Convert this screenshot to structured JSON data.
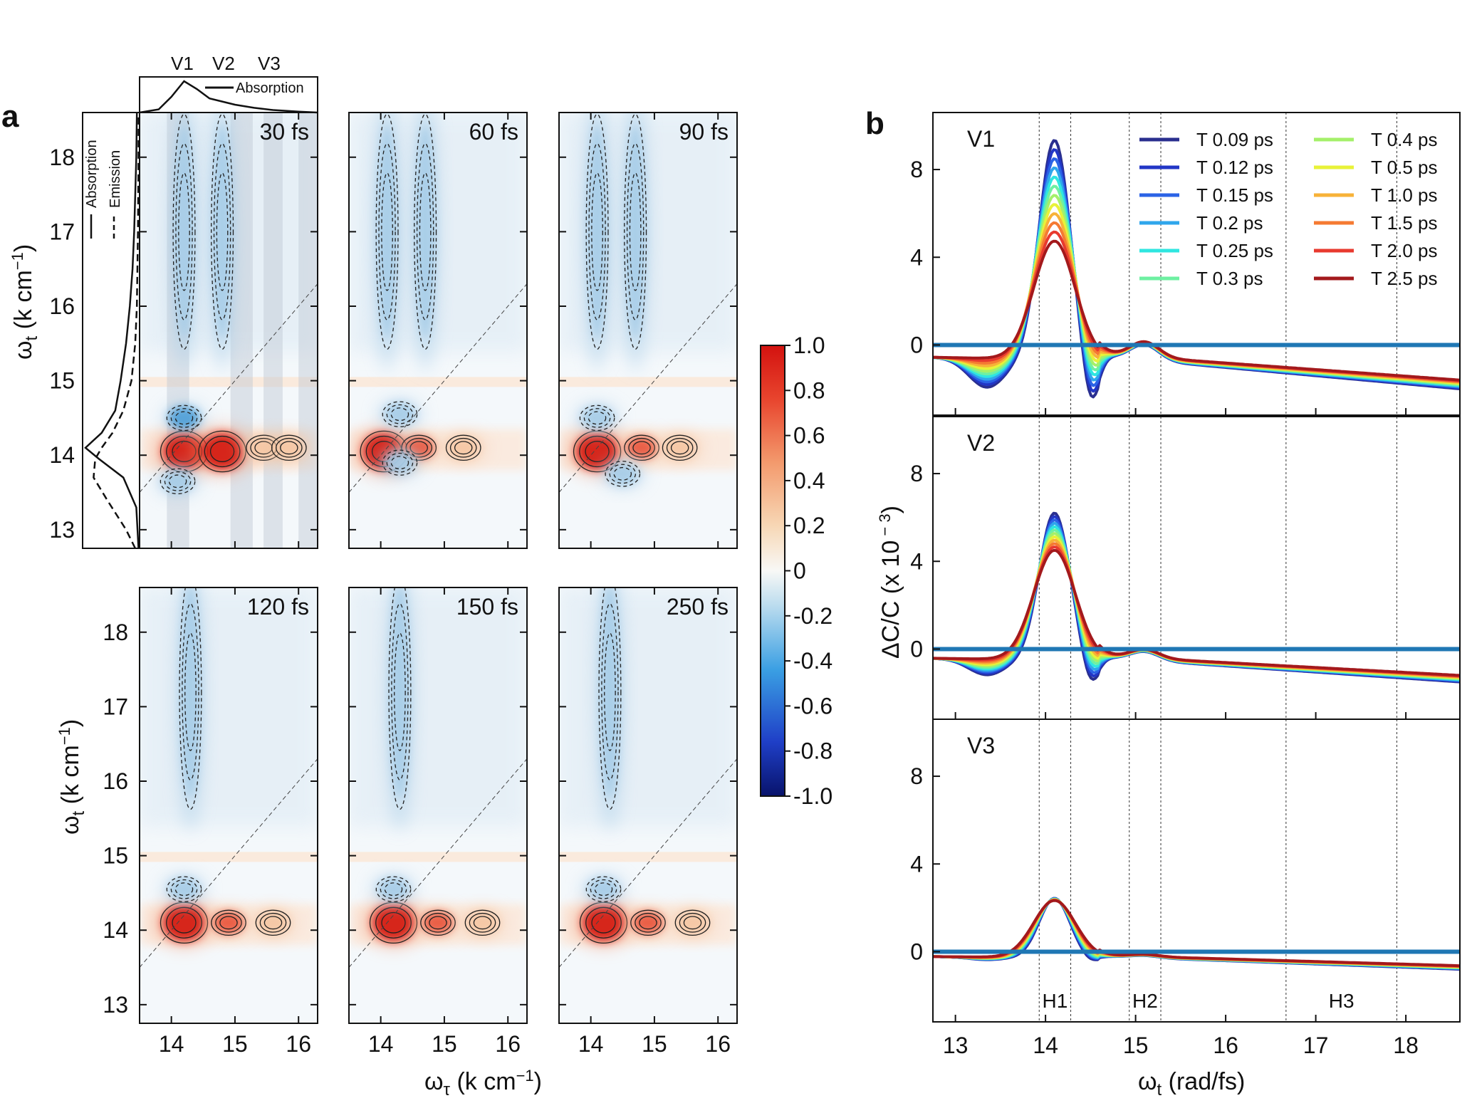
{
  "panel_a": {
    "letter": "a",
    "ylabel_main": "ω",
    "ylabel_sub": "t",
    "ylabel_unit": " (k cm",
    "ylabel_exp": "−1",
    "ylabel_close": ")",
    "xlabel_main": "ω",
    "xlabel_sub": "τ",
    "xlabel_unit": " (k cm",
    "xlabel_exp": "−1",
    "xlabel_close": ")",
    "xticks": [
      "14",
      "15",
      "16"
    ],
    "yticks": [
      "13",
      "14",
      "15",
      "16",
      "17",
      "18"
    ],
    "times": [
      "30 fs",
      "60 fs",
      "90 fs",
      "120 fs",
      "150 fs",
      "250 fs"
    ],
    "top_inset": {
      "labels": [
        "V1",
        "V2",
        "V3"
      ],
      "legend": "Absorption"
    },
    "side_inset": {
      "legend": [
        "Absorption",
        "Emission"
      ]
    },
    "colorbar": {
      "ticks": [
        "1.0",
        "0.8",
        "0.6",
        "0.4",
        "0.2",
        "0",
        "-0.2",
        "-0.4",
        "-0.6",
        "-0.8",
        "-1.0"
      ]
    }
  },
  "panel_b": {
    "letter": "b",
    "ylabel": "ΔC/C (x 10",
    "ylabel_exp": " − 3",
    "ylabel_close": ")",
    "xlabel_main": "ω",
    "xlabel_sub": "t",
    "xlabel_unit": " (rad/fs)",
    "subpanels": [
      "V1",
      "V2",
      "V3"
    ],
    "regions": [
      "H1",
      "H2",
      "H3"
    ],
    "xticks": [
      "13",
      "14",
      "15",
      "16",
      "17",
      "18"
    ],
    "yticks": [
      "0",
      "4",
      "8"
    ]
  },
  "chart_data": [
    {
      "type": "heatmap",
      "panel": "a",
      "x_range": [
        13.5,
        16.3
      ],
      "y_range": [
        12.75,
        18.6
      ],
      "color_range": [
        -1.0,
        1.0
      ],
      "colormap": "blue-white-red",
      "diagonal_line": true,
      "maps": [
        {
          "time": "30 fs",
          "peaks": [
            [
              14.2,
              14.05,
              1.0
            ],
            [
              14.8,
              14.05,
              0.85
            ],
            [
              15.45,
              14.1,
              0.3
            ],
            [
              15.85,
              14.1,
              0.3
            ],
            [
              14.2,
              14.5,
              -0.45
            ],
            [
              14.1,
              13.65,
              -0.3
            ],
            [
              14.2,
              17.0,
              -0.35
            ],
            [
              14.8,
              17.0,
              -0.3
            ]
          ]
        },
        {
          "time": "60 fs",
          "peaks": [
            [
              14.05,
              14.05,
              0.9
            ],
            [
              14.6,
              14.1,
              0.6
            ],
            [
              15.3,
              14.1,
              0.3
            ],
            [
              14.3,
              13.9,
              -0.2
            ],
            [
              14.3,
              14.55,
              -0.4
            ],
            [
              14.1,
              17.0,
              -0.35
            ],
            [
              14.7,
              17.0,
              -0.3
            ]
          ]
        },
        {
          "time": "90 fs",
          "peaks": [
            [
              14.1,
              14.05,
              0.95
            ],
            [
              14.8,
              14.1,
              0.6
            ],
            [
              15.4,
              14.1,
              0.25
            ],
            [
              14.1,
              14.5,
              -0.4
            ],
            [
              14.5,
              13.75,
              -0.3
            ],
            [
              14.1,
              17.0,
              -0.3
            ],
            [
              14.7,
              17.0,
              -0.25
            ]
          ]
        },
        {
          "time": "120 fs",
          "peaks": [
            [
              14.2,
              14.1,
              1.0
            ],
            [
              14.9,
              14.1,
              0.6
            ],
            [
              15.6,
              14.1,
              0.3
            ],
            [
              14.2,
              14.55,
              -0.35
            ],
            [
              14.3,
              17.2,
              -0.3
            ]
          ]
        },
        {
          "time": "150 fs",
          "peaks": [
            [
              14.2,
              14.1,
              1.0
            ],
            [
              14.9,
              14.1,
              0.6
            ],
            [
              15.6,
              14.1,
              0.3
            ],
            [
              14.2,
              14.55,
              -0.35
            ],
            [
              14.3,
              17.2,
              -0.3
            ]
          ]
        },
        {
          "time": "250 fs",
          "peaks": [
            [
              14.2,
              14.1,
              1.0
            ],
            [
              14.9,
              14.1,
              0.6
            ],
            [
              15.6,
              14.1,
              0.3
            ],
            [
              14.2,
              14.55,
              -0.35
            ],
            [
              14.3,
              17.2,
              -0.3
            ]
          ]
        }
      ],
      "top_inset_absorption": {
        "x": [
          13.5,
          13.8,
          14.0,
          14.2,
          14.4,
          14.6,
          14.8,
          15.0,
          15.3,
          15.6,
          16.0,
          16.3
        ],
        "y": [
          0.0,
          0.1,
          0.5,
          1.0,
          0.75,
          0.45,
          0.35,
          0.25,
          0.15,
          0.08,
          0.03,
          0.0
        ]
      },
      "side_inset_absorption": {
        "y": [
          12.75,
          13.3,
          13.7,
          13.95,
          14.1,
          14.3,
          14.6,
          15.0,
          15.5,
          16.0,
          16.5,
          17.0,
          18.0,
          18.6
        ],
        "x": [
          0.02,
          0.06,
          0.3,
          0.75,
          1.0,
          0.7,
          0.45,
          0.35,
          0.25,
          0.18,
          0.13,
          0.1,
          0.06,
          0.05
        ]
      },
      "side_inset_emission": {
        "y": [
          12.75,
          13.0,
          13.4,
          13.7,
          13.95,
          14.1,
          14.3,
          14.6,
          15.0,
          15.5,
          16.0,
          17.0,
          18.0,
          18.6
        ],
        "x": [
          0.08,
          0.25,
          0.6,
          0.85,
          0.82,
          0.7,
          0.5,
          0.3,
          0.15,
          0.08,
          0.05,
          0.03,
          0.02,
          0.02
        ]
      }
    },
    {
      "type": "line",
      "panel": "b",
      "x_range": [
        12.75,
        18.6
      ],
      "y_range": [
        -3.2,
        10.6
      ],
      "xlabel": "ωt (rad/fs)",
      "ylabel": "ΔC/C (x 10 − 3)",
      "vlines": [
        13.93,
        14.28,
        14.93,
        15.28,
        16.67,
        17.9
      ],
      "legend_position": "top-right",
      "series": [
        {
          "name": "T 0.09 ps",
          "color": "#2a2f8f"
        },
        {
          "name": "T 0.12 ps",
          "color": "#2236c6"
        },
        {
          "name": "T 0.15 ps",
          "color": "#2b63e6"
        },
        {
          "name": "T 0.2 ps",
          "color": "#2fa6ec"
        },
        {
          "name": "T 0.25 ps",
          "color": "#2fe6e0"
        },
        {
          "name": "T 0.3 ps",
          "color": "#6ef0a2"
        },
        {
          "name": "T 0.4 ps",
          "color": "#a4f06a"
        },
        {
          "name": "T 0.5 ps",
          "color": "#e8f238"
        },
        {
          "name": "T 1.0 ps",
          "color": "#f7b238"
        },
        {
          "name": "T 1.5 ps",
          "color": "#f57a32"
        },
        {
          "name": "T 2.0 ps",
          "color": "#e83a2f"
        },
        {
          "name": "T 2.5 ps",
          "color": "#a3191c"
        }
      ],
      "subpanels": [
        {
          "name": "V1",
          "peak_first": 10.0,
          "peak_last": 5.4,
          "dip_first": -2.2,
          "bump": 0.7,
          "tail": -2.0
        },
        {
          "name": "V2",
          "peak_first": 6.7,
          "peak_last": 5.0,
          "dip_first": -1.2,
          "bump": 0.4,
          "tail": -1.5
        },
        {
          "name": "V3",
          "peak_first": 2.7,
          "peak_last": 2.6,
          "dip_first": -0.2,
          "bump": 0.1,
          "tail": -0.8
        }
      ]
    }
  ]
}
